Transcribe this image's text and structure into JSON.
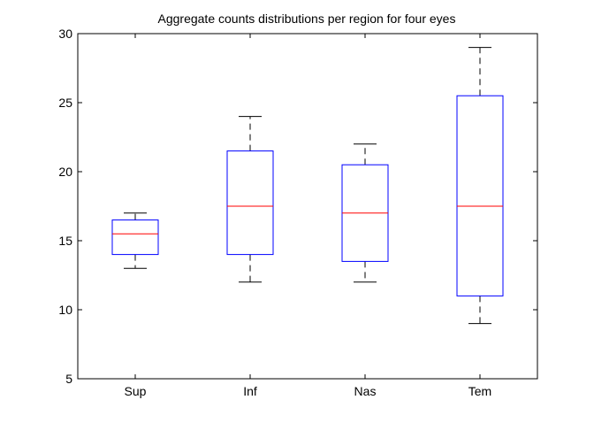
{
  "chart_data": {
    "type": "boxplot",
    "title": "Aggregate counts distributions per region for four eyes",
    "xlabel": "",
    "ylabel": "",
    "ylim": [
      5,
      30
    ],
    "yticks": [
      5,
      10,
      15,
      20,
      25,
      30
    ],
    "ytick_labels": [
      "5",
      "10",
      "15",
      "20",
      "25",
      "30"
    ],
    "grid": false,
    "categories": [
      "Sup",
      "Inf",
      "Nas",
      "Tem"
    ],
    "boxes": [
      {
        "label": "Sup",
        "whisker_low": 13,
        "q1": 14,
        "median": 15.5,
        "q3": 16.5,
        "whisker_high": 17
      },
      {
        "label": "Inf",
        "whisker_low": 12,
        "q1": 14,
        "median": 17.5,
        "q3": 21.5,
        "whisker_high": 24
      },
      {
        "label": "Nas",
        "whisker_low": 12,
        "q1": 13.5,
        "median": 17,
        "q3": 20.5,
        "whisker_high": 22
      },
      {
        "label": "Tem",
        "whisker_low": 9,
        "q1": 11,
        "median": 17.5,
        "q3": 25.5,
        "whisker_high": 29
      }
    ],
    "colors": {
      "box": "#0000ff",
      "median": "#ff0000",
      "whisker": "#000000",
      "axes": "#000000"
    }
  }
}
